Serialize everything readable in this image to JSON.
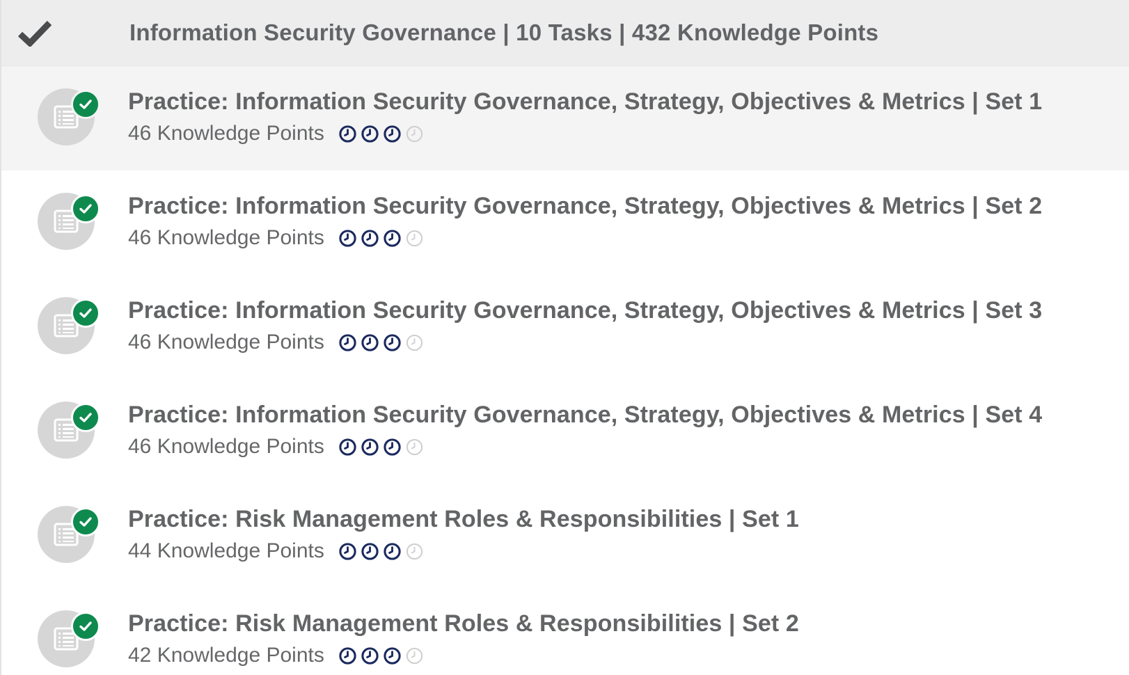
{
  "section": {
    "check_icon": "checkmark-icon",
    "title": "Information Security Governance | 10 Tasks | 432 Knowledge Points"
  },
  "colors": {
    "header_bg": "#ededed",
    "active_row_bg": "#f4f4f4",
    "completed_badge": "#0e8a4e",
    "clock_filled": "#1b2a5e",
    "clock_empty": "#d0d0d0"
  },
  "tasks": [
    {
      "title": "Practice: Information Security Governance, Strategy, Objectives & Metrics | Set 1",
      "points": "46 Knowledge Points",
      "clocks_filled": 3,
      "clocks_total": 4,
      "completed": true
    },
    {
      "title": "Practice: Information Security Governance, Strategy, Objectives & Metrics | Set 2",
      "points": "46 Knowledge Points",
      "clocks_filled": 3,
      "clocks_total": 4,
      "completed": true
    },
    {
      "title": "Practice: Information Security Governance, Strategy, Objectives & Metrics | Set 3",
      "points": "46 Knowledge Points",
      "clocks_filled": 3,
      "clocks_total": 4,
      "completed": true
    },
    {
      "title": "Practice: Information Security Governance, Strategy, Objectives & Metrics | Set 4",
      "points": "46 Knowledge Points",
      "clocks_filled": 3,
      "clocks_total": 4,
      "completed": true
    },
    {
      "title": "Practice: Risk Management Roles & Responsibilities | Set 1",
      "points": "44 Knowledge Points",
      "clocks_filled": 3,
      "clocks_total": 4,
      "completed": true
    },
    {
      "title": "Practice: Risk Management Roles & Responsibilities | Set 2",
      "points": "42 Knowledge Points",
      "clocks_filled": 3,
      "clocks_total": 4,
      "completed": true
    }
  ]
}
